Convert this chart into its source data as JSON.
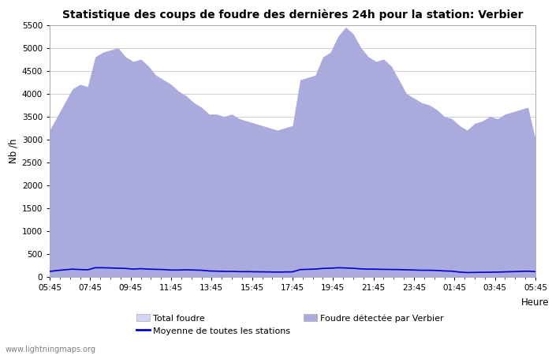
{
  "title": "Statistique des coups de foudre des dernières 24h pour la station: Verbier",
  "xlabel": "Heure",
  "ylabel": "Nb /h",
  "x_ticks": [
    "05:45",
    "07:45",
    "09:45",
    "11:45",
    "13:45",
    "15:45",
    "17:45",
    "19:45",
    "21:45",
    "23:45",
    "01:45",
    "03:45",
    "05:45"
  ],
  "ylim": [
    0,
    5500
  ],
  "y_ticks": [
    0,
    500,
    1000,
    1500,
    2000,
    2500,
    3000,
    3500,
    4000,
    4500,
    5000,
    5500
  ],
  "bg_color": "#ffffff",
  "plot_bg_color": "#ffffff",
  "grid_color": "#c8c8c8",
  "total_foudre_color": "#d4d4f8",
  "verbier_color": "#aaaadd",
  "moyenne_color": "#0000cc",
  "watermark": "www.lightningmaps.org",
  "legend_total": "Total foudre",
  "legend_moyenne": "Moyenne de toutes les stations",
  "legend_verbier": "Foudre détectée par Verbier",
  "total_foudre": [
    3200,
    3500,
    3800,
    4100,
    4200,
    4150,
    4800,
    4900,
    4950,
    5000,
    4800,
    4700,
    4750,
    4600,
    4400,
    4300,
    4200,
    4050,
    3950,
    3800,
    3700,
    3550,
    3550,
    3500,
    3550,
    3450,
    3400,
    3350,
    3300,
    3250,
    3200,
    3250,
    3300,
    4300,
    4350,
    4400,
    4800,
    4900,
    5250,
    5450,
    5300,
    5000,
    4800,
    4700,
    4750,
    4600,
    4300,
    4000,
    3900,
    3800,
    3750,
    3650,
    3500,
    3450,
    3300,
    3200,
    3350,
    3400,
    3500,
    3450,
    3550,
    3600,
    3650,
    3700,
    3000
  ],
  "verbier": [
    3200,
    3500,
    3800,
    4100,
    4200,
    4150,
    4800,
    4900,
    4950,
    5000,
    4800,
    4700,
    4750,
    4600,
    4400,
    4300,
    4200,
    4050,
    3950,
    3800,
    3700,
    3550,
    3550,
    3500,
    3550,
    3450,
    3400,
    3350,
    3300,
    3250,
    3200,
    3250,
    3300,
    4300,
    4350,
    4400,
    4800,
    4900,
    5250,
    5450,
    5300,
    5000,
    4800,
    4700,
    4750,
    4600,
    4300,
    4000,
    3900,
    3800,
    3750,
    3650,
    3500,
    3450,
    3300,
    3200,
    3350,
    3400,
    3500,
    3450,
    3550,
    3600,
    3650,
    3700,
    3000
  ],
  "moyenne": [
    120,
    140,
    155,
    170,
    160,
    155,
    200,
    200,
    195,
    190,
    185,
    170,
    180,
    170,
    165,
    160,
    150,
    150,
    155,
    150,
    145,
    130,
    125,
    120,
    120,
    115,
    115,
    112,
    110,
    108,
    105,
    108,
    110,
    160,
    165,
    170,
    185,
    190,
    200,
    195,
    188,
    175,
    170,
    168,
    165,
    162,
    160,
    155,
    150,
    145,
    145,
    140,
    130,
    125,
    105,
    95,
    98,
    100,
    102,
    105,
    110,
    115,
    120,
    125,
    115
  ]
}
